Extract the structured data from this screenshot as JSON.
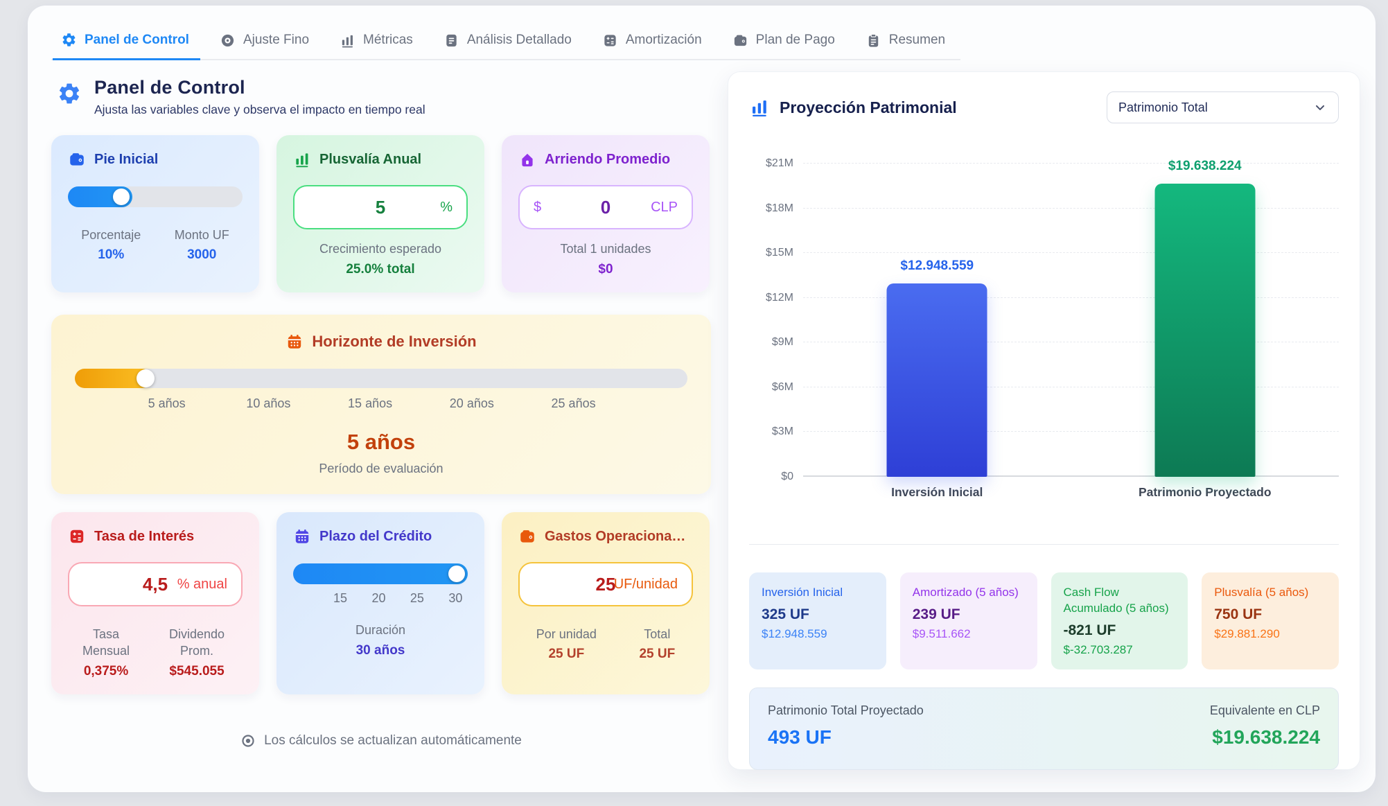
{
  "tabs": [
    {
      "label": "Panel de Control",
      "icon": "gear-icon",
      "active": true
    },
    {
      "label": "Ajuste Fino",
      "icon": "target-icon",
      "active": false
    },
    {
      "label": "Métricas",
      "icon": "bars-icon",
      "active": false
    },
    {
      "label": "Análisis Detallado",
      "icon": "document-icon",
      "active": false
    },
    {
      "label": "Amortización",
      "icon": "calculator-icon",
      "active": false
    },
    {
      "label": "Plan de Pago",
      "icon": "wallet-icon",
      "active": false
    },
    {
      "label": "Resumen",
      "icon": "clipboard-icon",
      "active": false
    }
  ],
  "header": {
    "title": "Panel de Control",
    "subtitle": "Ajusta las variables clave y observa el impacto en tiempo real"
  },
  "cards": {
    "pie_inicial": {
      "title": "Pie Inicial",
      "icon": "wallet-icon",
      "label_left": "Porcentaje",
      "value_left": "10%",
      "label_right": "Monto UF",
      "value_right": "3000"
    },
    "plusvalia": {
      "title": "Plusvalía Anual",
      "icon": "bars-icon",
      "input_value": "5",
      "unit": "%",
      "caption": "Crecimiento esperado",
      "caption_value": "25.0% total"
    },
    "arriendo": {
      "title": "Arriendo Promedio",
      "icon": "house-icon",
      "prefix": "$",
      "input_value": "0",
      "unit": "CLP",
      "caption": "Total 1 unidades",
      "caption_value": "$0"
    },
    "horizonte": {
      "title": "Horizonte de Inversión",
      "icon": "calendar-icon",
      "ticks": [
        "5 años",
        "10 años",
        "15 años",
        "20 años",
        "25 años"
      ],
      "value": "5 años",
      "caption": "Período de evaluación"
    },
    "tasa": {
      "title": "Tasa de Interés",
      "icon": "calculator-icon",
      "input_value": "4,5",
      "unit": "% anual",
      "label_left": "Tasa Mensual",
      "value_left": "0,375%",
      "label_right": "Dividendo Prom.",
      "value_right": "$545.055"
    },
    "plazo": {
      "title": "Plazo del Crédito",
      "icon": "calendar-icon",
      "ticks": [
        "15",
        "20",
        "25",
        "30"
      ],
      "label": "Duración",
      "value": "30 años"
    },
    "gastos": {
      "title": "Gastos Operaciona…",
      "icon": "wallet-icon",
      "input_value": "25",
      "unit": "UF/unidad",
      "label_left": "Por unidad",
      "value_left": "25 UF",
      "label_right": "Total",
      "value_right": "25 UF"
    }
  },
  "footer_note": "Los cálculos se actualizan automáticamente",
  "panel": {
    "title": "Proyección Patrimonial",
    "icon": "bars-icon",
    "dropdown_value": "Patrimonio Total"
  },
  "chart_data": {
    "type": "bar",
    "title": "Proyección Patrimonial",
    "categories": [
      "Inversión Inicial",
      "Patrimonio Proyectado"
    ],
    "values": [
      12948559,
      19638224
    ],
    "value_labels": [
      "$12.948.559",
      "$19.638.224"
    ],
    "ylim": [
      0,
      21000000
    ],
    "grid": true,
    "legend": false,
    "y_ticks": [
      {
        "label": "$0",
        "value": 0
      },
      {
        "label": "$3M",
        "value": 3000000
      },
      {
        "label": "$6M",
        "value": 6000000
      },
      {
        "label": "$9M",
        "value": 9000000
      },
      {
        "label": "$12M",
        "value": 12000000
      },
      {
        "label": "$15M",
        "value": 15000000
      },
      {
        "label": "$18M",
        "value": 18000000
      },
      {
        "label": "$21M",
        "value": 21000000
      }
    ],
    "bars": [
      {
        "category": "Inversión Inicial",
        "value": 12948559,
        "label": "$12.948.559",
        "color_top": "#4a6cf0",
        "color_bottom": "#2e3fd6",
        "label_color": "#2563eb"
      },
      {
        "category": "Patrimonio Proyectado",
        "value": 19638224,
        "label": "$19.638.224",
        "color_top": "#14b87e",
        "color_bottom": "#0d7a54",
        "label_color": "#0e9f6e"
      }
    ]
  },
  "stats": [
    {
      "label": "Inversión Inicial",
      "uf": "325 UF",
      "clp": "$12.948.559",
      "theme": "blue"
    },
    {
      "label": "Amortizado (5 años)",
      "uf": "239 UF",
      "clp": "$9.511.662",
      "theme": "purple"
    },
    {
      "label": "Cash Flow Acumulado (5 años)",
      "uf": "-821 UF",
      "clp": "$-32.703.287",
      "theme": "green"
    },
    {
      "label": "Plusvalía (5 años)",
      "uf": "750 UF",
      "clp": "$29.881.290",
      "theme": "orange"
    }
  ],
  "summary": {
    "label": "Patrimonio Total Proyectado",
    "uf": "493 UF",
    "right_label": "Equivalente en CLP",
    "clp": "$19.638.224"
  },
  "colors": {
    "accent_blue": "#1e88f5",
    "accent_green": "#16a34a",
    "accent_purple": "#9333ea",
    "accent_orange": "#ea580c",
    "accent_red": "#dc2626",
    "slider_blue": "#2196f3",
    "slider_amber": "#f59e0b",
    "summary_uf": "#1a73f5",
    "summary_clp": "#22a55a"
  }
}
